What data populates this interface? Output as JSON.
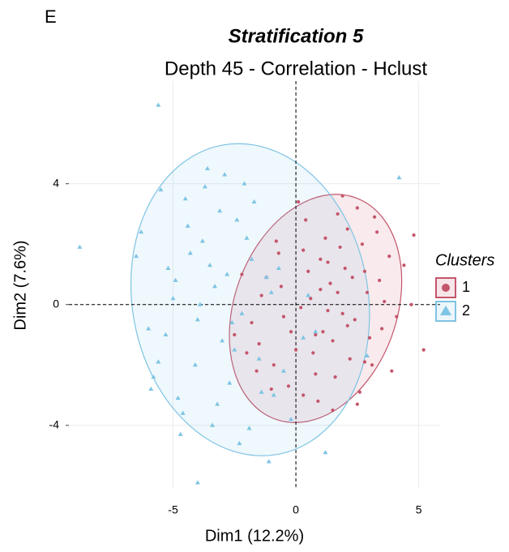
{
  "panel_label": "E",
  "chart_data": {
    "type": "scatter",
    "title": "Stratification 5",
    "subtitle": "Depth 45 - Correlation -  Hclust",
    "x_label": "Dim1 (12.2%)",
    "y_label": "Dim2 (7.6%)",
    "legend_title": "Clusters",
    "xlim": [
      -9.24,
      5.87
    ],
    "ylim": [
      -6.1,
      7.4
    ],
    "xticks": [
      -5,
      0,
      5
    ],
    "yticks": [
      -4,
      0,
      4
    ],
    "grid": true,
    "series": [
      {
        "name": "1",
        "color": "#c4566b",
        "marker": "circle",
        "x": [
          1.0,
          1.5,
          0.3,
          2.1,
          -0.5,
          2.8,
          3.5,
          0.8,
          -1.2,
          1.9,
          2.5,
          0.0,
          -0.8,
          1.3,
          3.1,
          -1.8,
          0.6,
          2.2,
          1.7,
          -0.3,
          2.9,
          3.8,
          1.1,
          0.4,
          -1.5,
          2.6,
          1.4,
          -0.9,
          3.3,
          0.2,
          1.8,
          2.4,
          -2.2,
          0.9,
          3.6,
          1.2,
          -0.6,
          2.0,
          0.7,
          4.1,
          -1.0,
          1.6,
          2.7,
          0.1,
          3.0,
          -2.0,
          1.0,
          2.3,
          4.4,
          -0.2,
          1.5,
          0.5,
          3.2,
          -1.4,
          2.8,
          4.8,
          5.2,
          4.7,
          1.9,
          0.3,
          -2.5,
          2.1,
          3.9,
          -0.7,
          1.3,
          2.5,
          0.8,
          3.4,
          -1.6,
          1.7
        ],
        "values": [
          0.5,
          -1.2,
          1.8,
          2.5,
          -0.4,
          1.1,
          -0.8,
          -2.3,
          0.9,
          -0.3,
          3.2,
          -1.5,
          2.1,
          1.4,
          -2.0,
          -0.6,
          0.2,
          -1.8,
          3.0,
          -2.7,
          0.4,
          1.6,
          -0.9,
          2.8,
          -1.3,
          -2.9,
          0.7,
          -2.0,
          2.4,
          -0.1,
          1.9,
          -0.5,
          1.0,
          -3.2,
          0.1,
          2.2,
          0.6,
          1.2,
          -1.6,
          -0.4,
          -2.8,
          -2.4,
          2.0,
          3.4,
          -1.1,
          -1.6,
          1.5,
          0.9,
          1.3,
          -0.9,
          -3.5,
          1.1,
          2.9,
          0.3,
          -1.9,
          2.3,
          -1.5,
          0.0,
          3.6,
          -3.0,
          -1.0,
          -0.7,
          -2.2,
          1.7,
          -0.2,
          -3.3,
          -1.0,
          0.8,
          -2.2,
          0.4
        ],
        "ellipse": {
          "cx": 0.8,
          "cy": -0.13,
          "rx": 3.3,
          "ry": 3.9,
          "angle": 20
        }
      },
      {
        "name": "2",
        "color": "#7ec4e4",
        "marker": "triangle",
        "x": [
          -4.5,
          -3.8,
          -5.2,
          -2.9,
          -6.0,
          -3.3,
          -4.1,
          -2.4,
          -5.5,
          -3.0,
          -1.8,
          -4.8,
          -2.2,
          -6.3,
          -3.6,
          -1.5,
          -5.0,
          -2.7,
          -4.3,
          -3.1,
          -0.9,
          -5.8,
          -2.0,
          -4.0,
          -3.4,
          -1.2,
          -6.5,
          -2.5,
          -4.7,
          -0.5,
          -3.9,
          -1.7,
          -5.3,
          -2.8,
          -0.2,
          -4.4,
          -3.2,
          -1.0,
          -5.6,
          -2.1,
          0.3,
          -3.7,
          -1.4,
          -4.9,
          -2.3,
          0.8,
          -8.8,
          -5.6,
          4.2,
          -4.0,
          -1.1,
          1.2,
          -2.6,
          -3.5,
          -4.6,
          0.5,
          -1.9,
          2.9,
          -5.9,
          -0.7
        ],
        "values": [
          3.5,
          2.1,
          1.2,
          4.3,
          -0.8,
          0.6,
          -2.0,
          2.8,
          3.8,
          -1.2,
          1.5,
          -3.1,
          -0.3,
          2.4,
          4.5,
          -1.8,
          0.2,
          -2.6,
          1.7,
          3.1,
          -3.0,
          -2.4,
          2.2,
          -0.5,
          -4.0,
          0.9,
          1.6,
          -1.5,
          -4.3,
          -2.2,
          0.0,
          3.4,
          -1.0,
          1.0,
          -3.8,
          2.6,
          -3.3,
          0.4,
          -1.9,
          4.0,
          -1.1,
          3.9,
          -2.9,
          0.8,
          -4.6,
          -0.9,
          1.9,
          6.6,
          4.2,
          -5.9,
          -5.2,
          -4.9,
          -0.6,
          1.3,
          -3.6,
          0.3,
          -4.1,
          -1.7,
          -2.8,
          1.2
        ],
        "ellipse": {
          "cx": -1.86,
          "cy": 0.16,
          "rx": 4.8,
          "ry": 5.2,
          "angle": -10
        }
      }
    ]
  }
}
